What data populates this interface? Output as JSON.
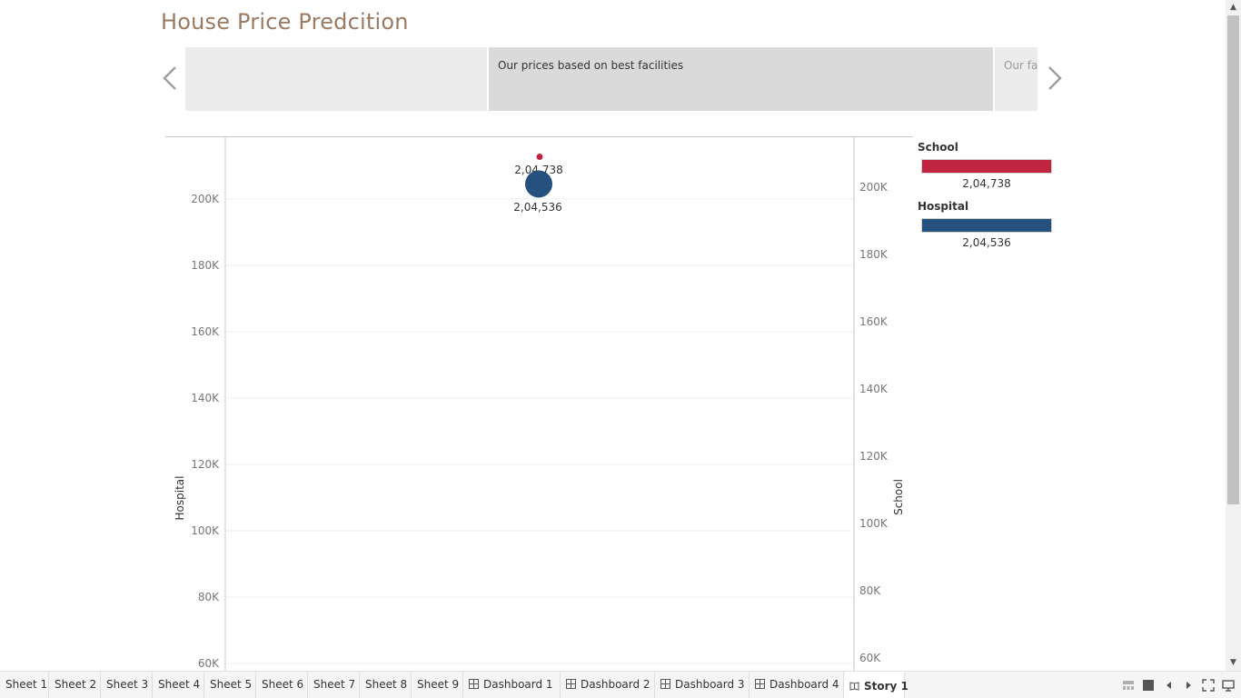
{
  "story": {
    "title": "House Price Predcition",
    "points": [
      {
        "caption": ""
      },
      {
        "caption": "Our prices based on best facilities"
      },
      {
        "caption": "Our facilities"
      }
    ]
  },
  "chart_data": {
    "type": "scatter",
    "left_axis": {
      "label": "Hospital",
      "ticks": [
        "200K",
        "180K",
        "160K",
        "140K",
        "120K",
        "100K",
        "80K",
        "60K"
      ],
      "tick_values": [
        200000,
        180000,
        160000,
        140000,
        120000,
        100000,
        80000,
        60000
      ]
    },
    "right_axis": {
      "label": "School",
      "ticks": [
        "200K",
        "180K",
        "160K",
        "140K",
        "120K",
        "100K",
        "80K",
        "60K"
      ],
      "tick_values": [
        200000,
        180000,
        160000,
        140000,
        120000,
        100000,
        80000,
        60000
      ]
    },
    "series": [
      {
        "name": "School",
        "value": 204738,
        "label": "2,04,738",
        "color": "#c0243e"
      },
      {
        "name": "Hospital",
        "value": 204536,
        "label": "2,04,536",
        "color": "#26507e"
      }
    ],
    "grid": true
  },
  "legend": {
    "items": [
      {
        "title": "School",
        "value": "2,04,738",
        "color": "#c0243e"
      },
      {
        "title": "Hospital",
        "value": "2,04,536",
        "color": "#26507e"
      }
    ]
  },
  "tabs": [
    {
      "label": "Sheet 1",
      "type": "sheet"
    },
    {
      "label": "Sheet 2",
      "type": "sheet"
    },
    {
      "label": "Sheet 3",
      "type": "sheet"
    },
    {
      "label": "Sheet 4",
      "type": "sheet"
    },
    {
      "label": "Sheet 5",
      "type": "sheet"
    },
    {
      "label": "Sheet 6",
      "type": "sheet"
    },
    {
      "label": "Sheet 7",
      "type": "sheet"
    },
    {
      "label": "Sheet 8",
      "type": "sheet"
    },
    {
      "label": "Sheet 9",
      "type": "sheet"
    },
    {
      "label": "Dashboard 1",
      "type": "dashboard"
    },
    {
      "label": "Dashboard 2",
      "type": "dashboard"
    },
    {
      "label": "Dashboard 3",
      "type": "dashboard"
    },
    {
      "label": "Dashboard 4",
      "type": "dashboard"
    },
    {
      "label": "Story 1",
      "type": "story",
      "active": true
    }
  ],
  "icons": {
    "prev": "chevron-left-icon",
    "next": "chevron-right-icon",
    "dashboard_tab": "dashboard-grid-icon",
    "story_tab": "story-book-icon"
  }
}
